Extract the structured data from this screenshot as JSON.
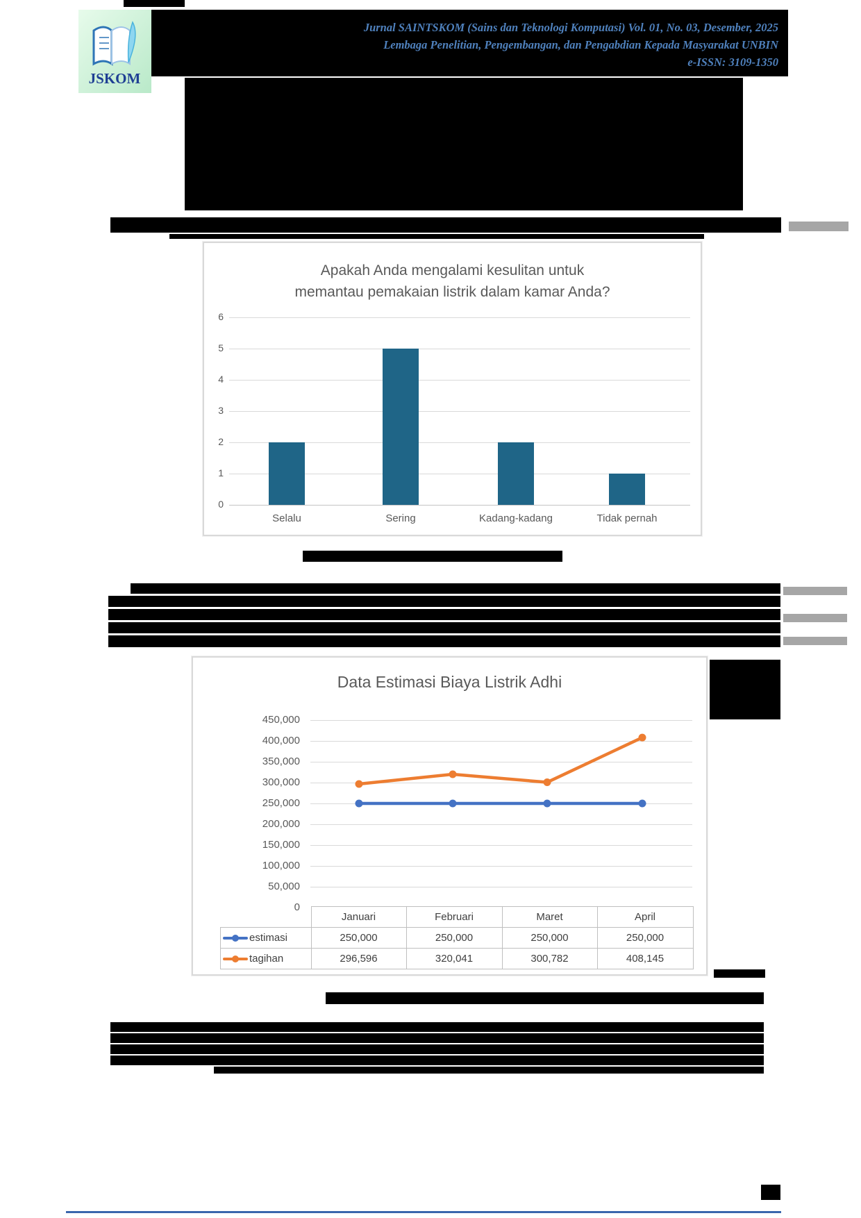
{
  "logo": {
    "text": "JSKOM"
  },
  "header": {
    "line1": "Jurnal SAINTSKOM (Sains dan Teknologi Komputasi) Vol. 01, No. 03, Desember, 2025",
    "line2": "Lembaga Penelitian, Pengembangan, dan Pengabdian Kepada Masyarakat UNBIN",
    "line3": "e-ISSN: 3109-1350",
    "text_color": "#4f81bd"
  },
  "chart_data": [
    {
      "type": "bar",
      "title": "Apakah Anda mengalami kesulitan untuk memantau pemakaian listrik dalam kamar Anda?",
      "title_lines": [
        "Apakah Anda mengalami kesulitan untuk",
        "memantau pemakaian listrik dalam kamar Anda?"
      ],
      "categories": [
        "Selalu",
        "Sering",
        "Kadang-kadang",
        "Tidak pernah"
      ],
      "values": [
        2,
        5,
        2,
        1
      ],
      "ylim": [
        0,
        6
      ],
      "ytick_step": 1,
      "bar_color": "#1f6587",
      "grid": true,
      "legend": "none"
    },
    {
      "type": "line",
      "title": "Data Estimasi Biaya Listrik Adhi",
      "categories": [
        "Januari",
        "Februari",
        "Maret",
        "April"
      ],
      "series": [
        {
          "name": "estimasi",
          "color": "#4472c4",
          "values": [
            250000,
            250000,
            250000,
            250000
          ],
          "labels": [
            "250,000",
            "250,000",
            "250,000",
            "250,000"
          ]
        },
        {
          "name": "tagihan",
          "color": "#ed7d31",
          "values": [
            296596,
            320041,
            300782,
            408145
          ],
          "labels": [
            "296,596",
            "320,041",
            "300,782",
            "408,145"
          ]
        }
      ],
      "ylim": [
        0,
        450000
      ],
      "ytick_step": 50000,
      "ytick_labels": [
        "0",
        "50,000",
        "100,000",
        "150,000",
        "200,000",
        "250,000",
        "300,000",
        "350,000",
        "400,000",
        "450,000"
      ],
      "grid": true,
      "legend_position": "table-left",
      "data_table": true
    }
  ]
}
